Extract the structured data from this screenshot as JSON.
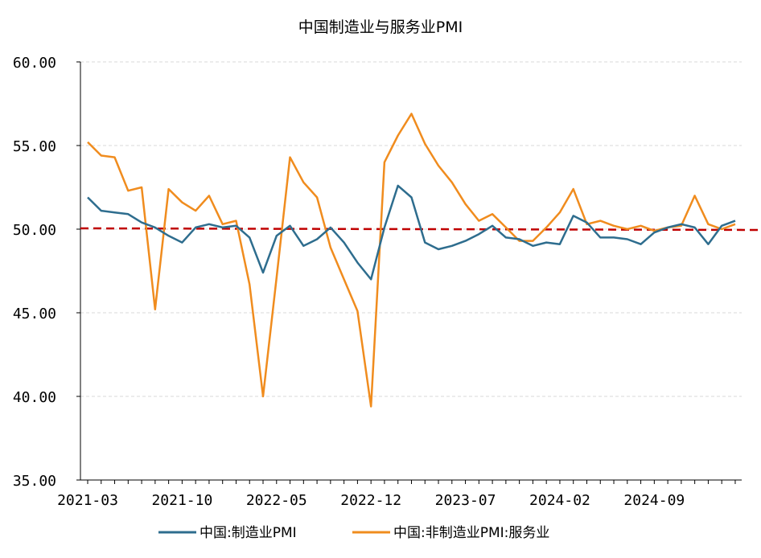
{
  "chart_data": {
    "type": "line",
    "title": "中国制造业与服务业PMI",
    "xlabel": "",
    "ylabel": "",
    "ylim": [
      35,
      60
    ],
    "yticks": [
      "35.00",
      "40.00",
      "45.00",
      "50.00",
      "55.00",
      "60.00"
    ],
    "xtick_labels": [
      "2021-03",
      "2021-10",
      "2022-05",
      "2022-12",
      "2023-07",
      "2024-02",
      "2024-09"
    ],
    "x": [
      "2021-03",
      "2021-04",
      "2021-05",
      "2021-06",
      "2021-07",
      "2021-08",
      "2021-09",
      "2021-10",
      "2021-11",
      "2021-12",
      "2022-01",
      "2022-02",
      "2022-03",
      "2022-04",
      "2022-05",
      "2022-06",
      "2022-07",
      "2022-08",
      "2022-09",
      "2022-10",
      "2022-11",
      "2022-12",
      "2023-01",
      "2023-02",
      "2023-03",
      "2023-04",
      "2023-05",
      "2023-06",
      "2023-07",
      "2023-08",
      "2023-09",
      "2023-10",
      "2023-11",
      "2023-12",
      "2024-01",
      "2024-02",
      "2024-03",
      "2024-04",
      "2024-05",
      "2024-06",
      "2024-07",
      "2024-08",
      "2024-09",
      "2024-10",
      "2024-11",
      "2024-12",
      "2025-01",
      "2025-02",
      "2025-03"
    ],
    "series": [
      {
        "name": "中国:制造业PMI",
        "color": "#2e6d8e",
        "values": [
          51.9,
          51.1,
          51.0,
          50.9,
          50.4,
          50.1,
          49.6,
          49.2,
          50.1,
          50.3,
          50.1,
          50.2,
          49.5,
          47.4,
          49.6,
          50.2,
          49.0,
          49.4,
          50.1,
          49.2,
          48.0,
          47.0,
          50.1,
          52.6,
          51.9,
          49.2,
          48.8,
          49.0,
          49.3,
          49.7,
          50.2,
          49.5,
          49.4,
          49.0,
          49.2,
          49.1,
          50.8,
          50.4,
          49.5,
          49.5,
          49.4,
          49.1,
          49.8,
          50.1,
          50.3,
          50.1,
          49.1,
          50.2,
          50.5
        ]
      },
      {
        "name": "中国:非制造业PMI:服务业",
        "color": "#f08c1e",
        "values": [
          55.2,
          54.4,
          54.3,
          52.3,
          52.5,
          45.2,
          52.4,
          51.6,
          51.1,
          52.0,
          50.3,
          50.5,
          46.7,
          40.0,
          47.1,
          54.3,
          52.8,
          51.9,
          48.9,
          47.0,
          45.1,
          39.4,
          54.0,
          55.6,
          56.9,
          55.1,
          53.8,
          52.8,
          51.5,
          50.5,
          50.9,
          50.1,
          49.3,
          49.3,
          50.1,
          51.0,
          52.4,
          50.3,
          50.5,
          50.2,
          50.0,
          50.2,
          49.9,
          50.1,
          50.2,
          52.0,
          50.3,
          50.0,
          50.3
        ]
      }
    ],
    "reference_line": {
      "value": 50,
      "color": "#c00000",
      "style": "dashed"
    },
    "grid": true,
    "legend": "bottom"
  }
}
